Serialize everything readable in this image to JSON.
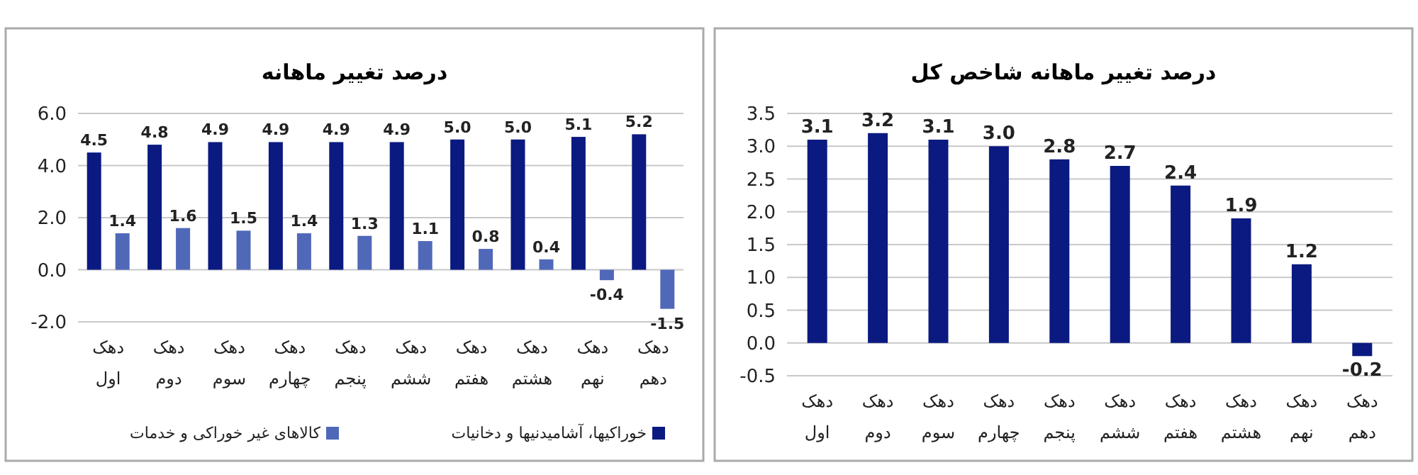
{
  "chart_data": [
    {
      "type": "bar",
      "title": "درصد تغییر ماهانه",
      "categories": [
        "دهک اول",
        "دهک دوم",
        "دهک سوم",
        "دهک چهارم",
        "دهک پنجم",
        "دهک ششم",
        "دهک هفتم",
        "دهک هشتم",
        "دهک نهم",
        "دهک دهم"
      ],
      "series": [
        {
          "name": "خوراکیها، آشامیدنیها و دخانیات",
          "color": "#0a1a80",
          "values": [
            4.5,
            4.8,
            4.9,
            4.9,
            4.9,
            4.9,
            5.0,
            5.0,
            5.1,
            5.2
          ],
          "value_labels": [
            "4.5",
            "4.8",
            "4.9",
            "4.9",
            "4.9",
            "4.9",
            "5.0",
            "5.0",
            "5.1",
            "5.2"
          ]
        },
        {
          "name": "کالاهای غیر خوراکی و خدمات",
          "color": "#5068b8",
          "values": [
            1.4,
            1.6,
            1.5,
            1.4,
            1.3,
            1.1,
            0.8,
            0.4,
            -0.4,
            -1.5
          ],
          "value_labels": [
            "1.4",
            "1.6",
            "1.5",
            "1.4",
            "1.3",
            "1.1",
            "0.8",
            "0.4",
            "-0.4",
            "-1.5"
          ]
        }
      ],
      "ylim": [
        -2,
        6
      ],
      "yticks": [
        {
          "value": -2,
          "label": "-2.0"
        },
        {
          "value": 0,
          "label": "0.0"
        },
        {
          "value": 2,
          "label": "2.0"
        },
        {
          "value": 4,
          "label": "4.0"
        },
        {
          "value": 6,
          "label": "6.0"
        }
      ],
      "grid": "y",
      "legend": "bottom"
    },
    {
      "type": "bar",
      "title": "درصد تغییر ماهانه شاخص کل",
      "categories": [
        "دهک اول",
        "دهک دوم",
        "دهک سوم",
        "دهک چهارم",
        "دهک پنجم",
        "دهک ششم",
        "دهک هفتم",
        "دهک هشتم",
        "دهک نهم",
        "دهک دهم"
      ],
      "series": [
        {
          "color": "#0a1a80",
          "values": [
            3.1,
            3.2,
            3.1,
            3.0,
            2.8,
            2.7,
            2.4,
            1.9,
            1.2,
            -0.2
          ],
          "value_labels": [
            "3.1",
            "3.2",
            "3.1",
            "3.0",
            "2.8",
            "2.7",
            "2.4",
            "1.9",
            "1.2",
            "-0.2"
          ]
        }
      ],
      "ylim": [
        -0.5,
        3.5
      ],
      "yticks": [
        {
          "value": -0.5,
          "label": "-0.5"
        },
        {
          "value": 0,
          "label": "0.0"
        },
        {
          "value": 0.5,
          "label": "0.5"
        },
        {
          "value": 1,
          "label": "1.0"
        },
        {
          "value": 1.5,
          "label": "1.5"
        },
        {
          "value": 2,
          "label": "2.0"
        },
        {
          "value": 2.5,
          "label": "2.5"
        },
        {
          "value": 3,
          "label": "3.0"
        },
        {
          "value": 3.5,
          "label": "3.5"
        }
      ],
      "grid": "y"
    }
  ]
}
